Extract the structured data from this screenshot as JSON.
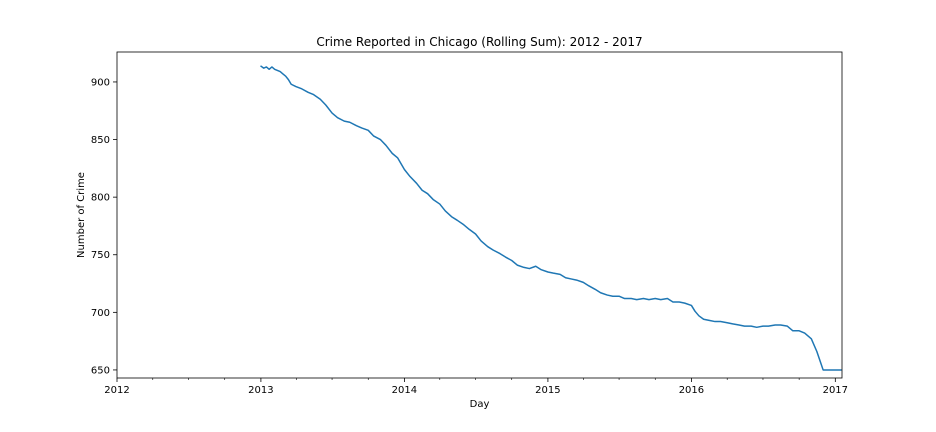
{
  "chart_data": {
    "type": "line",
    "title": "Crime Reported in Chicago (Rolling Sum): 2012 - 2017",
    "xlabel": "Day",
    "ylabel": "Number of Crime",
    "xlim": [
      "2012-01-01",
      "2017-01-18"
    ],
    "ylim": [
      643,
      926
    ],
    "grid": false,
    "line_color": "#1f77b4",
    "x_ticks": [
      {
        "date": "2012-01-01",
        "label": "2012"
      },
      {
        "date": "2013-01-01",
        "label": "2013"
      },
      {
        "date": "2014-01-01",
        "label": "2014"
      },
      {
        "date": "2015-01-01",
        "label": "2015"
      },
      {
        "date": "2016-01-01",
        "label": "2016"
      },
      {
        "date": "2017-01-01",
        "label": "2017"
      }
    ],
    "x_minor_ticks": [
      "2012-04-01",
      "2012-07-01",
      "2012-10-01",
      "2013-04-01",
      "2013-07-01",
      "2013-10-01",
      "2014-04-01",
      "2014-07-01",
      "2014-10-01",
      "2015-04-01",
      "2015-07-01",
      "2015-10-01",
      "2016-04-01",
      "2016-07-01",
      "2016-10-01"
    ],
    "y_ticks": [
      650,
      700,
      750,
      800,
      850,
      900
    ],
    "series": [
      {
        "x": [
          "2012-12-31",
          "2013-01-08",
          "2013-01-15",
          "2013-01-22",
          "2013-01-29",
          "2013-02-05",
          "2013-02-12",
          "2013-02-19",
          "2013-02-26",
          "2013-03-05",
          "2013-03-12",
          "2013-03-19",
          "2013-03-31",
          "2013-04-15",
          "2013-05-01",
          "2013-05-15",
          "2013-06-01",
          "2013-06-15",
          "2013-07-01",
          "2013-07-15",
          "2013-08-01",
          "2013-08-15",
          "2013-09-01",
          "2013-09-15",
          "2013-10-01",
          "2013-10-15",
          "2013-11-01",
          "2013-11-15",
          "2013-12-01",
          "2013-12-15",
          "2014-01-01",
          "2014-01-15",
          "2014-02-01",
          "2014-02-15",
          "2014-03-01",
          "2014-03-15",
          "2014-04-01",
          "2014-04-15",
          "2014-05-01",
          "2014-05-15",
          "2014-06-01",
          "2014-06-15",
          "2014-07-01",
          "2014-07-15",
          "2014-08-01",
          "2014-08-15",
          "2014-09-01",
          "2014-09-15",
          "2014-10-01",
          "2014-10-15",
          "2014-11-01",
          "2014-11-15",
          "2014-12-01",
          "2014-12-15",
          "2015-01-01",
          "2015-01-15",
          "2015-02-01",
          "2015-02-15",
          "2015-03-01",
          "2015-03-15",
          "2015-04-01",
          "2015-04-15",
          "2015-05-01",
          "2015-05-15",
          "2015-06-01",
          "2015-06-15",
          "2015-07-01",
          "2015-07-15",
          "2015-08-01",
          "2015-08-15",
          "2015-09-01",
          "2015-09-15",
          "2015-10-01",
          "2015-10-15",
          "2015-11-01",
          "2015-11-15",
          "2015-12-01",
          "2015-12-15",
          "2016-01-01",
          "2016-01-10",
          "2016-01-20",
          "2016-02-01",
          "2016-02-15",
          "2016-03-01",
          "2016-03-15",
          "2016-04-01",
          "2016-04-15",
          "2016-05-01",
          "2016-05-15",
          "2016-06-01",
          "2016-06-15",
          "2016-07-01",
          "2016-07-15",
          "2016-08-01",
          "2016-08-15",
          "2016-09-01",
          "2016-09-15",
          "2016-10-01",
          "2016-10-15",
          "2016-11-01",
          "2016-11-15",
          "2016-11-25",
          "2016-12-01",
          "2016-12-10",
          "2016-12-20",
          "2016-12-27",
          "2017-01-04",
          "2017-01-12",
          "2017-01-17"
        ],
        "values": [
          914,
          912,
          913,
          911,
          913,
          911,
          910,
          909,
          907,
          905,
          902,
          898,
          896,
          894,
          891,
          889,
          885,
          880,
          873,
          869,
          866,
          865,
          862,
          860,
          858,
          853,
          850,
          845,
          838,
          834,
          824,
          818,
          812,
          806,
          803,
          798,
          794,
          788,
          783,
          780,
          776,
          772,
          768,
          762,
          757,
          754,
          751,
          748,
          745,
          741,
          739,
          738,
          740,
          737,
          735,
          734,
          733,
          730,
          729,
          728,
          726,
          723,
          720,
          717,
          715,
          714,
          714,
          712,
          712,
          711,
          712,
          711,
          712,
          711,
          712,
          709,
          709,
          708,
          706,
          701,
          697,
          694,
          693,
          692,
          692,
          691,
          690,
          689,
          688,
          688,
          687,
          688,
          688,
          689,
          689,
          688,
          684,
          684,
          682,
          677,
          666,
          656,
          650,
          650,
          650,
          650,
          650,
          650,
          650
        ],
        "name": ""
      }
    ]
  }
}
